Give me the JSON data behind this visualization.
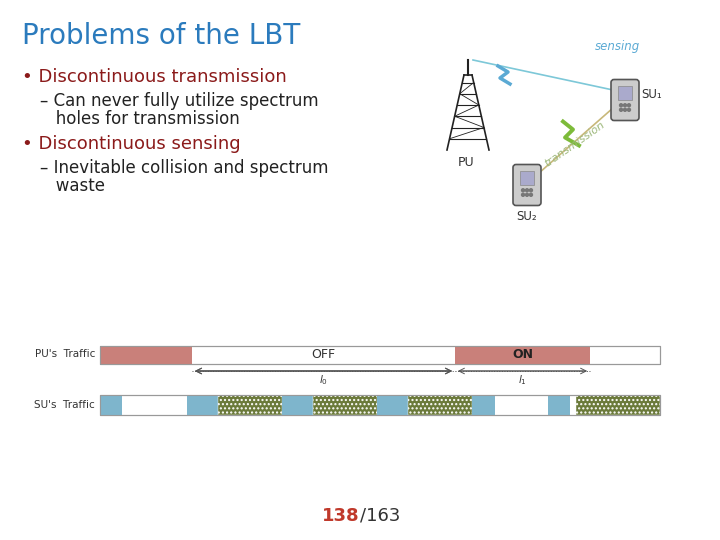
{
  "title": "Problems of the LBT",
  "title_color": "#2B7BBD",
  "title_fontsize": 20,
  "bg_color": "#FFFFFF",
  "bullet1": "Discontinuous transmission",
  "bullet1_color": "#8B1A1A",
  "sub1_line1": "– Can never fully utilize spectrum",
  "sub1_line2": "   holes for transmission",
  "sub_color": "#222222",
  "bullet2": "Discontinuous sensing",
  "bullet2_color": "#8B1A1A",
  "sub2_line1": "– Inevitable collision and spectrum",
  "sub2_line2": "   waste",
  "pu_bar_color": "#C9807A",
  "off_label": "OFF",
  "on_label": "ON",
  "su_sensing_color": "#7EB5CC",
  "su_tx_color": "#6B7A3A",
  "page_num": "138",
  "page_total": "163",
  "page_color": "#C0392B",
  "sensing_text_color": "#5BAAD4",
  "transmission_text_color": "#9DB87A"
}
